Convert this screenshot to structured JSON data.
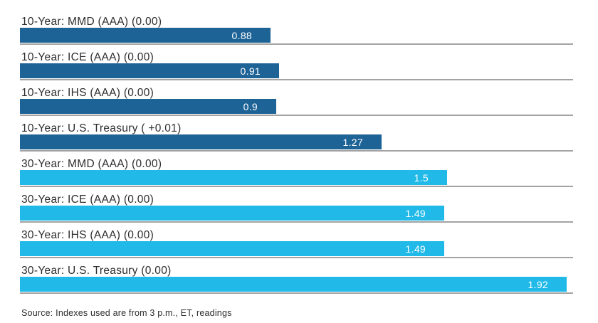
{
  "chart_data": {
    "type": "bar",
    "orientation": "horizontal",
    "title": "",
    "xlabel": "",
    "ylabel": "",
    "xlim": [
      0,
      1.9425
    ],
    "grid": false,
    "legend": "none",
    "value_labels_position": "inside-end",
    "colors": {
      "dark": "#1e6396",
      "light": "#20b9e8"
    },
    "rows": [
      {
        "label": "10-Year: MMD (AAA) (0.00)",
        "value": 0.88,
        "display_value": "0.88",
        "color_key": "dark"
      },
      {
        "label": "10-Year: ICE (AAA) (0.00)",
        "value": 0.91,
        "display_value": "0.91",
        "color_key": "dark"
      },
      {
        "label": "10-Year: IHS (AAA) (0.00)",
        "value": 0.9,
        "display_value": "0.9",
        "color_key": "dark"
      },
      {
        "label": "10-Year: U.S. Treasury ( +0.01)",
        "value": 1.27,
        "display_value": "1.27",
        "color_key": "dark"
      },
      {
        "label": "30-Year: MMD (AAA) (0.00)",
        "value": 1.5,
        "display_value": "1.5",
        "color_key": "light"
      },
      {
        "label": "30-Year: ICE (AAA) (0.00)",
        "value": 1.49,
        "display_value": "1.49",
        "color_key": "light"
      },
      {
        "label": "30-Year: IHS (AAA) (0.00)",
        "value": 1.49,
        "display_value": "1.49",
        "color_key": "light"
      },
      {
        "label": "30-Year: U.S. Treasury (0.00)",
        "value": 1.92,
        "display_value": "1.92",
        "color_key": "light"
      }
    ],
    "source_note": "Source: Indexes used are from 3 p.m., ET, readings",
    "separator_color": "#a3a3a3",
    "value_text_color": "#ffffff",
    "label_text_color": "#2d2d2d"
  }
}
